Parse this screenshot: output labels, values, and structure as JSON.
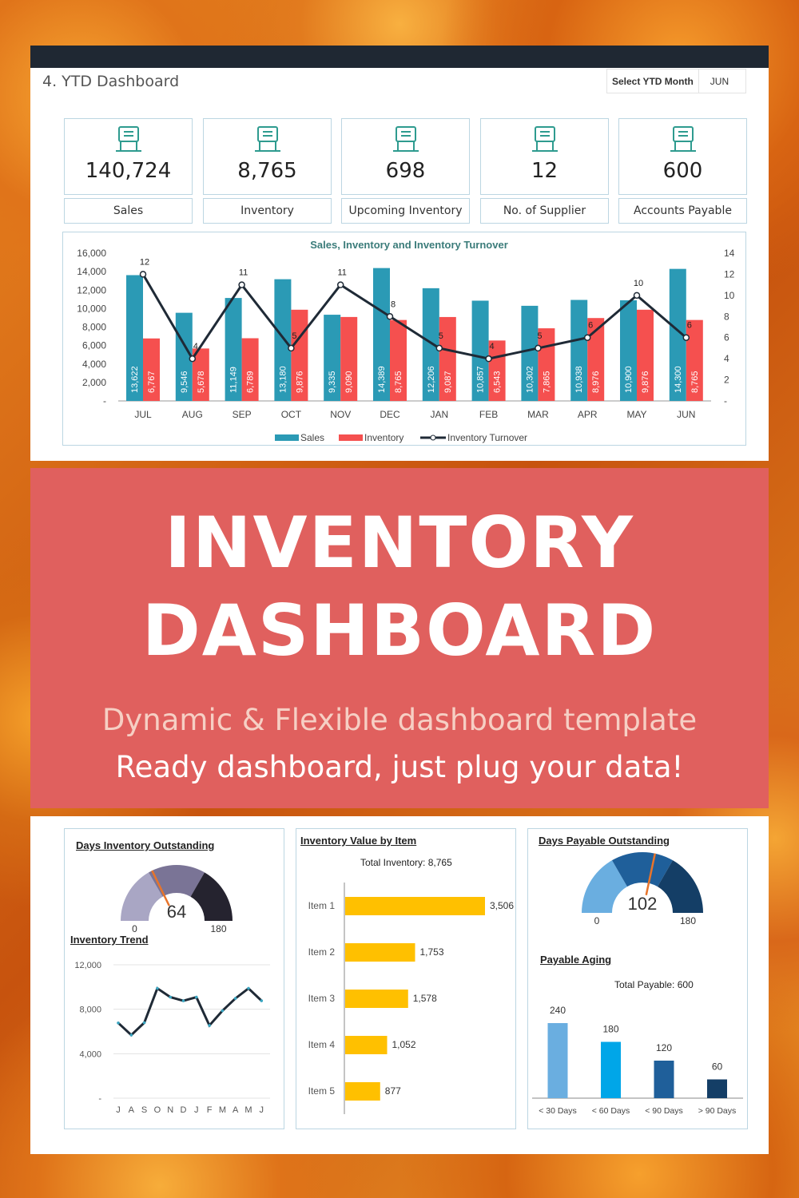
{
  "header": {
    "title": "4. YTD Dashboard",
    "select_label": "Select YTD Month",
    "select_value": "JUN"
  },
  "kpis": [
    {
      "value": "140,724",
      "label": "Sales",
      "icon": "cash-hand-icon"
    },
    {
      "value": "8,765",
      "label": "Inventory",
      "icon": "warehouse-shelf-icon"
    },
    {
      "value": "698",
      "label": "Upcoming Inventory",
      "icon": "hand-truck-icon"
    },
    {
      "value": "12",
      "label": "No. of Supplier",
      "icon": "supplier-boxes-icon"
    },
    {
      "value": "600",
      "label": "Accounts Payable",
      "icon": "hand-money-icon"
    }
  ],
  "banner": {
    "line1": "INVENTORY",
    "line2": "DASHBOARD",
    "sub1": "Dynamic & Flexible dashboard template",
    "sub2": "Ready dashboard, just plug your data!"
  },
  "colors": {
    "sales": "#2b9ab5",
    "inventory": "#f5504f",
    "line": "#1f2a36",
    "banner": "#e0605e",
    "item_bar": "#ffc000"
  },
  "chart_data": [
    {
      "type": "bar",
      "title": "Sales, Inventory and Inventory Turnover",
      "categories": [
        "JUL",
        "AUG",
        "SEP",
        "OCT",
        "NOV",
        "DEC",
        "JAN",
        "FEB",
        "MAR",
        "APR",
        "MAY",
        "JUN"
      ],
      "series": [
        {
          "name": "Sales",
          "values": [
            13622,
            9546,
            11149,
            13180,
            9335,
            14389,
            12206,
            10857,
            10302,
            10938,
            10900,
            14300
          ],
          "labels": [
            "13,622",
            "9,546",
            "11,149",
            "13,180",
            "9,335",
            "14,389",
            "12,206",
            "10,857",
            "10,302",
            "10,938",
            "10,900",
            "14,300"
          ]
        },
        {
          "name": "Inventory",
          "values": [
            6767,
            5678,
            6789,
            9876,
            9090,
            8765,
            9087,
            6543,
            7865,
            8976,
            9876,
            8765
          ],
          "labels": [
            "6,767",
            "5,678",
            "6,789",
            "9,876",
            "9,090",
            "8,765",
            "9,087",
            "6,543",
            "7,865",
            "8,976",
            "9,876",
            "8,765"
          ]
        },
        {
          "name": "Inventory Turnover",
          "type": "line",
          "axis": "right",
          "values": [
            12,
            4,
            11,
            5,
            11,
            8,
            5,
            4,
            5,
            6,
            10,
            6
          ]
        }
      ],
      "ylim": [
        0,
        16000
      ],
      "y2lim": [
        0,
        14
      ],
      "yticks": [
        "-",
        "2,000",
        "4,000",
        "6,000",
        "8,000",
        "10,000",
        "12,000",
        "14,000",
        "16,000"
      ],
      "y2ticks": [
        "-",
        "2",
        "4",
        "6",
        "8",
        "10",
        "12",
        "14"
      ],
      "legend": "bottom"
    },
    {
      "type": "gauge",
      "title": "Days Inventory Outstanding",
      "value": 64,
      "min": 0,
      "max": 180,
      "min_label": "0",
      "max_label": "180",
      "value_label": "64"
    },
    {
      "type": "line",
      "title": "Inventory Trend",
      "categories": [
        "J",
        "A",
        "S",
        "O",
        "N",
        "D",
        "J",
        "F",
        "M",
        "A",
        "M",
        "J"
      ],
      "values": [
        6767,
        5678,
        6789,
        9876,
        9090,
        8765,
        9087,
        6543,
        7865,
        8976,
        9876,
        8765
      ],
      "ylim": [
        0,
        12000
      ],
      "yticks": [
        "-",
        "4,000",
        "8,000",
        "12,000"
      ]
    },
    {
      "type": "bar",
      "orientation": "horizontal",
      "title": "Inventory Value by Item",
      "subtitle": "Total Inventory: 8,765",
      "categories": [
        "Item 1",
        "Item 2",
        "Item 3",
        "Item 4",
        "Item 5"
      ],
      "values": [
        3506,
        1753,
        1578,
        1052,
        877
      ],
      "labels": [
        "3,506",
        "1,753",
        "1,578",
        "1,052",
        "877"
      ]
    },
    {
      "type": "gauge",
      "title": "Days Payable Outstanding",
      "value": 102,
      "min": 0,
      "max": 180,
      "min_label": "0",
      "max_label": "180",
      "value_label": "102"
    },
    {
      "type": "bar",
      "title": "Payable Aging",
      "subtitle": "Total Payable: 600",
      "categories": [
        "< 30 Days",
        "< 60 Days",
        "< 90 Days",
        "> 90 Days"
      ],
      "values": [
        240,
        180,
        120,
        60
      ],
      "labels": [
        "240",
        "180",
        "120",
        "60"
      ]
    }
  ]
}
